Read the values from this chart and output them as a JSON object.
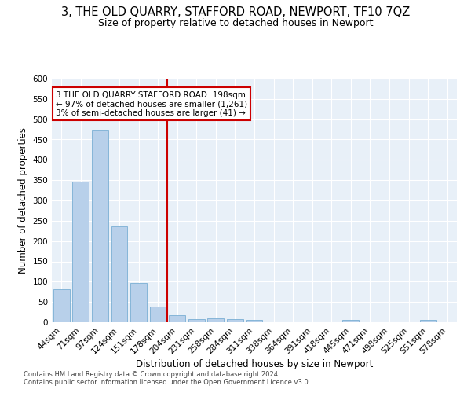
{
  "title": "3, THE OLD QUARRY, STAFFORD ROAD, NEWPORT, TF10 7QZ",
  "subtitle": "Size of property relative to detached houses in Newport",
  "xlabel": "Distribution of detached houses by size in Newport",
  "ylabel": "Number of detached properties",
  "categories": [
    "44sqm",
    "71sqm",
    "97sqm",
    "124sqm",
    "151sqm",
    "178sqm",
    "204sqm",
    "231sqm",
    "258sqm",
    "284sqm",
    "311sqm",
    "338sqm",
    "364sqm",
    "391sqm",
    "418sqm",
    "445sqm",
    "471sqm",
    "498sqm",
    "525sqm",
    "551sqm",
    "578sqm"
  ],
  "values": [
    81,
    347,
    473,
    237,
    97,
    38,
    17,
    8,
    9,
    8,
    5,
    0,
    0,
    0,
    0,
    5,
    0,
    0,
    0,
    5,
    0
  ],
  "bar_color": "#b8d0ea",
  "bar_edge_color": "#7aafd4",
  "annotation_text": "3 THE OLD QUARRY STAFFORD ROAD: 198sqm\n← 97% of detached houses are smaller (1,261)\n3% of semi-detached houses are larger (41) →",
  "annotation_box_color": "#ffffff",
  "annotation_box_edge_color": "#cc0000",
  "vline_color": "#cc0000",
  "ylim": [
    0,
    600
  ],
  "yticks": [
    0,
    50,
    100,
    150,
    200,
    250,
    300,
    350,
    400,
    450,
    500,
    550,
    600
  ],
  "footer_line1": "Contains HM Land Registry data © Crown copyright and database right 2024.",
  "footer_line2": "Contains public sector information licensed under the Open Government Licence v3.0.",
  "plot_bg_color": "#e8f0f8",
  "title_fontsize": 10.5,
  "subtitle_fontsize": 9,
  "axis_label_fontsize": 8.5,
  "tick_fontsize": 7.5,
  "footer_fontsize": 6
}
